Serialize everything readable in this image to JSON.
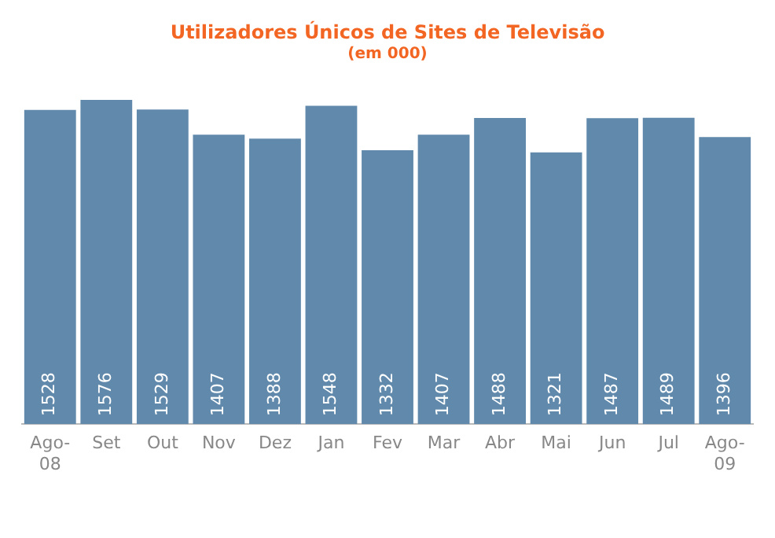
{
  "chart_data": {
    "type": "bar",
    "title": "Utilizadores Únicos de Sites de Televisão",
    "subtitle": "(em 000)",
    "categories": [
      "Ago-08",
      "Set",
      "Out",
      "Nov",
      "Dez",
      "Jan",
      "Fev",
      "Mar",
      "Abr",
      "Mai",
      "Jun",
      "Jul",
      "Ago-09"
    ],
    "values": [
      1528,
      1576,
      1529,
      1407,
      1388,
      1548,
      1332,
      1407,
      1488,
      1321,
      1487,
      1489,
      1396
    ],
    "color": "#6089ab",
    "data_labels": true,
    "grid": false,
    "legend": false
  }
}
